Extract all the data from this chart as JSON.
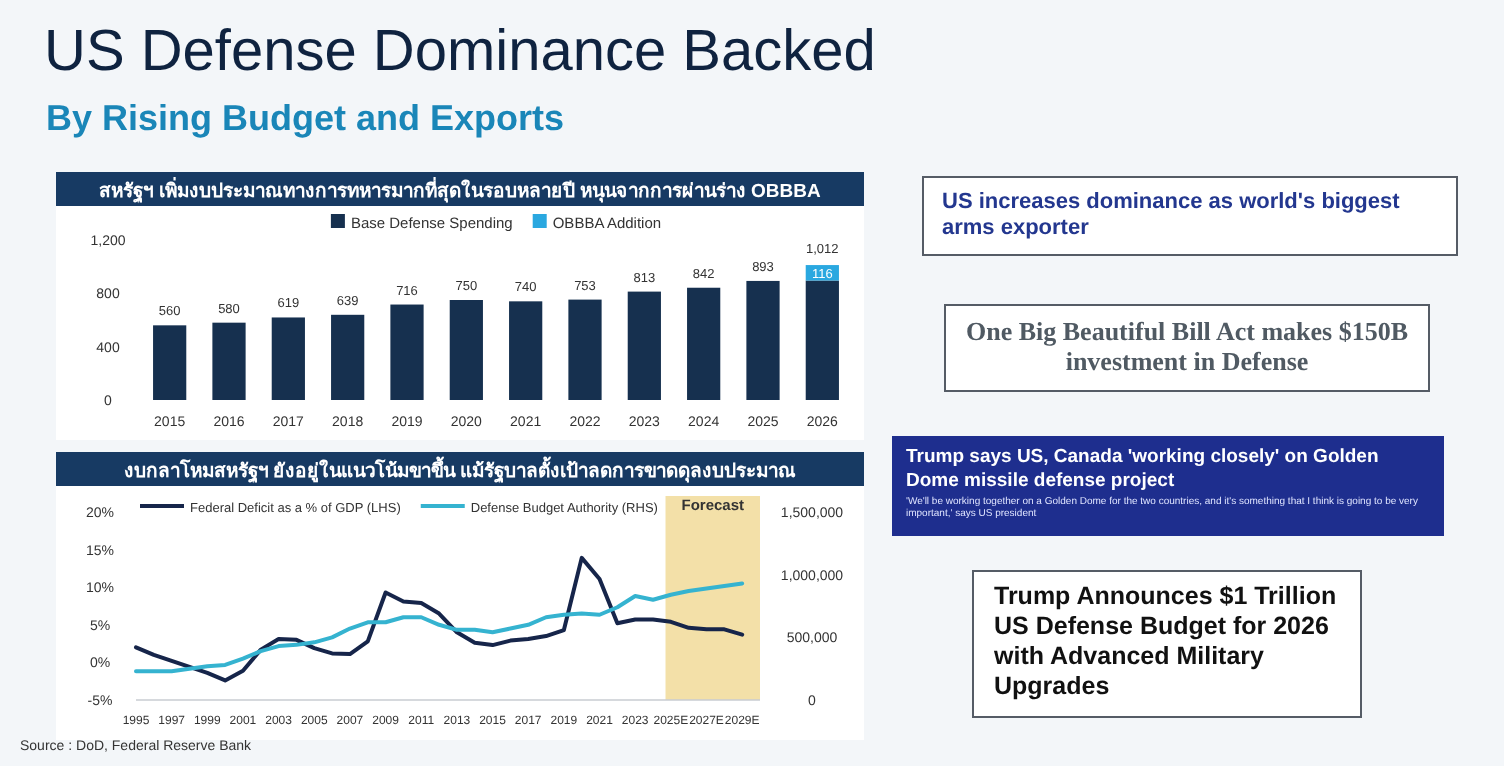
{
  "chart_data": [
    {
      "type": "other",
      "title": "US Defense Dominance Backed",
      "subtitle": "By Rising Budget and Exports",
      "annotations": [
        "US increases dominance as world's biggest arms exporter",
        "One Big Beautiful Bill Act makes $150B investment in Defense",
        "Trump says US, Canada 'working closely' on Golden Dome missile defense project",
        "'We'll be working together on a Golden Dome for the two countries, and it's something that I think is going to be very important,' says US president",
        "Trump Announces $1 Trillion US Defense Budget for 2026 with Advanced Military Upgrades",
        "Source : DoD, Federal Reserve Bank"
      ]
    },
    {
      "type": "bar",
      "title": "สหรัฐฯ เพิ่มงบประมาณทางการทหารมากที่สุดในรอบหลายปี หนุนจากการผ่านร่าง OBBBA",
      "stacked": true,
      "legend": "top",
      "categories": [
        "2015",
        "2016",
        "2017",
        "2018",
        "2019",
        "2020",
        "2021",
        "2022",
        "2023",
        "2024",
        "2025",
        "2026"
      ],
      "series": [
        {
          "name": "Base Defense Spending",
          "color": "#16304f",
          "values": [
            560,
            580,
            619,
            639,
            716,
            750,
            740,
            753,
            813,
            842,
            893,
            896
          ],
          "value_labels": [
            "560",
            "580",
            "619",
            "639",
            "716",
            "750",
            "740",
            "753",
            "813",
            "842",
            "893",
            null
          ]
        },
        {
          "name": "OBBBA Addition",
          "color": "#2aa8e0",
          "values": [
            null,
            null,
            null,
            null,
            null,
            null,
            null,
            null,
            null,
            null,
            null,
            116
          ],
          "value_labels": [
            null,
            null,
            null,
            null,
            null,
            null,
            null,
            null,
            null,
            null,
            null,
            "116"
          ]
        }
      ],
      "totals": [
        null,
        null,
        null,
        null,
        null,
        null,
        null,
        null,
        null,
        null,
        null,
        "1,012"
      ],
      "ylim": [
        0,
        1200
      ],
      "yticks": [
        0,
        400,
        800,
        {
          "value": 1200,
          "label": "1,200"
        }
      ]
    },
    {
      "type": "line",
      "title": "งบกลาโหมสหรัฐฯ ยังอยู่ในแนวโน้มขาขึ้น แม้รัฐบาลตั้งเป้าลดการขาดดุลงบประมาณ",
      "legend": "top",
      "x": [
        1995,
        1996,
        1997,
        1998,
        1999,
        2000,
        2001,
        2002,
        2003,
        2004,
        2005,
        2006,
        2007,
        2008,
        2009,
        2010,
        2011,
        2012,
        2013,
        2014,
        2015,
        2016,
        2017,
        2018,
        2019,
        2020,
        2021,
        2022,
        2023,
        2024,
        2025,
        2026,
        2027,
        2028,
        2029
      ],
      "series": [
        {
          "name": "Federal Deficit as a % of GDP (LHS)",
          "color": "#16254a",
          "values": [
            2.0,
            1.0,
            0.2,
            -0.6,
            -1.4,
            -2.4,
            -1.1,
            1.7,
            3.1,
            3.0,
            1.9,
            1.2,
            1.1,
            2.8,
            9.3,
            8.1,
            7.9,
            6.5,
            4.0,
            2.6,
            2.3,
            2.9,
            3.1,
            3.5,
            4.3,
            13.9,
            11.1,
            5.2,
            5.7,
            5.7,
            5.4,
            4.6,
            4.4,
            4.4,
            3.7
          ]
        },
        {
          "name": "Defense Budget Authority (RHS)",
          "color": "#35b3d0",
          "axis": "y2",
          "values": [
            230000,
            230000,
            230000,
            250000,
            270000,
            280000,
            330000,
            390000,
            430000,
            440000,
            460000,
            500000,
            570000,
            620000,
            620000,
            660000,
            660000,
            600000,
            560000,
            560000,
            540000,
            570000,
            600000,
            660000,
            680000,
            690000,
            680000,
            740000,
            830000,
            800000,
            840000,
            870000,
            890000,
            910000,
            930000
          ]
        }
      ],
      "xlim": [
        1995,
        2030
      ],
      "xticks": [
        1995,
        1997,
        1999,
        2001,
        2003,
        2005,
        2007,
        2009,
        2011,
        2013,
        2015,
        2017,
        2019,
        2021,
        2023,
        {
          "value": 2025,
          "label": "2025E"
        },
        {
          "value": 2027,
          "label": "2027E"
        },
        {
          "value": 2029,
          "label": "2029E"
        }
      ],
      "ylim": [
        -5,
        20
      ],
      "yticks": [
        {
          "value": -5,
          "label": "-5%"
        },
        {
          "value": 0,
          "label": "0%"
        },
        {
          "value": 5,
          "label": "5%"
        },
        {
          "value": 10,
          "label": "10%"
        },
        {
          "value": 15,
          "label": "15%"
        },
        {
          "value": 20,
          "label": "20%"
        }
      ],
      "y2lim": [
        0,
        1500000
      ],
      "y2ticks": [
        0,
        {
          "value": 500000,
          "label": "500,000"
        },
        {
          "value": 1000000,
          "label": "1,000,000"
        },
        {
          "value": 1500000,
          "label": "1,500,000"
        }
      ],
      "bands": [
        {
          "axis": "x",
          "from": 2024.7,
          "to": 2030,
          "label": "Forecast",
          "color": "#f3e0a8"
        }
      ]
    }
  ]
}
